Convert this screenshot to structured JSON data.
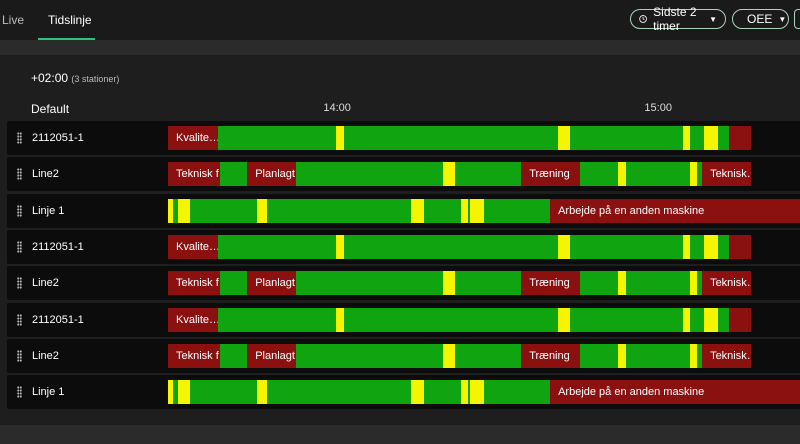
{
  "header": {
    "tabs": [
      "Live",
      "Tidslinje"
    ],
    "time_filter": "Sidste 2 timer",
    "metric": "OEE"
  },
  "timezone": "+02:00",
  "station_count": "(3 stationer)",
  "group": "Default",
  "axis": {
    "range": [
      808.4,
      926.5
    ],
    "ticks": [
      {
        "value": 840,
        "label": "14:00"
      },
      {
        "value": 900,
        "label": "15:00"
      }
    ]
  },
  "rows": [
    {
      "name": "2112051-1",
      "segments": [
        {
          "start": 808.4,
          "end": 817.8,
          "color": "#8b1111",
          "label": "Kvalite…"
        },
        {
          "start": 817.8,
          "end": 839.8,
          "color": "#10a510"
        },
        {
          "start": 839.8,
          "end": 841.3,
          "color": "#f5f500"
        },
        {
          "start": 841.3,
          "end": 881.3,
          "color": "#10a510"
        },
        {
          "start": 881.3,
          "end": 883.6,
          "color": "#f5f500"
        },
        {
          "start": 883.6,
          "end": 904.7,
          "color": "#10a510"
        },
        {
          "start": 904.7,
          "end": 906.0,
          "color": "#f5f500"
        },
        {
          "start": 906.0,
          "end": 908.6,
          "color": "#10a510"
        },
        {
          "start": 908.6,
          "end": 911.2,
          "color": "#f5f500"
        },
        {
          "start": 911.2,
          "end": 913.3,
          "color": "#10a510"
        },
        {
          "start": 913.3,
          "end": 917.4,
          "color": "#8b1111"
        }
      ]
    },
    {
      "name": "Line2",
      "segments": [
        {
          "start": 808.4,
          "end": 818.1,
          "color": "#8b1111",
          "label": "Teknisk f…"
        },
        {
          "start": 818.1,
          "end": 823.2,
          "color": "#10a510"
        },
        {
          "start": 823.2,
          "end": 832.3,
          "color": "#8b1111",
          "label": "Planlagt…"
        },
        {
          "start": 832.3,
          "end": 859.8,
          "color": "#10a510"
        },
        {
          "start": 859.8,
          "end": 862.1,
          "color": "#f5f500"
        },
        {
          "start": 862.1,
          "end": 874.4,
          "color": "#10a510"
        },
        {
          "start": 874.4,
          "end": 885.4,
          "color": "#8b1111",
          "label": "Træning"
        },
        {
          "start": 885.4,
          "end": 892.5,
          "color": "#10a510"
        },
        {
          "start": 892.5,
          "end": 894.0,
          "color": "#f5f500"
        },
        {
          "start": 894.0,
          "end": 906.0,
          "color": "#10a510"
        },
        {
          "start": 906.0,
          "end": 907.3,
          "color": "#f5f500"
        },
        {
          "start": 907.3,
          "end": 908.2,
          "color": "#10a510"
        },
        {
          "start": 908.2,
          "end": 917.4,
          "color": "#8b1111",
          "label": "Teknisk…"
        }
      ]
    },
    {
      "name": "Linje 1",
      "segments": [
        {
          "start": 808.4,
          "end": 809.3,
          "color": "#f5f500"
        },
        {
          "start": 809.3,
          "end": 810.3,
          "color": "#10a510"
        },
        {
          "start": 810.3,
          "end": 812.5,
          "color": "#f5f500"
        },
        {
          "start": 812.5,
          "end": 825.0,
          "color": "#10a510"
        },
        {
          "start": 825.0,
          "end": 826.9,
          "color": "#f5f500"
        },
        {
          "start": 826.9,
          "end": 853.8,
          "color": "#10a510"
        },
        {
          "start": 853.8,
          "end": 856.3,
          "color": "#f5f500"
        },
        {
          "start": 856.3,
          "end": 863.2,
          "color": "#10a510"
        },
        {
          "start": 863.2,
          "end": 864.5,
          "color": "#f5f500"
        },
        {
          "start": 864.5,
          "end": 864.9,
          "color": "#10a510"
        },
        {
          "start": 864.9,
          "end": 867.5,
          "color": "#f5f500"
        },
        {
          "start": 867.5,
          "end": 879.8,
          "color": "#10a510"
        },
        {
          "start": 879.8,
          "end": 926.5,
          "color": "#8b1111",
          "label": "Arbejde på en anden maskine"
        }
      ]
    },
    {
      "name": "2112051-1",
      "segments": [
        {
          "start": 808.4,
          "end": 817.8,
          "color": "#8b1111",
          "label": "Kvalite…"
        },
        {
          "start": 817.8,
          "end": 839.8,
          "color": "#10a510"
        },
        {
          "start": 839.8,
          "end": 841.3,
          "color": "#f5f500"
        },
        {
          "start": 841.3,
          "end": 881.3,
          "color": "#10a510"
        },
        {
          "start": 881.3,
          "end": 883.6,
          "color": "#f5f500"
        },
        {
          "start": 883.6,
          "end": 904.7,
          "color": "#10a510"
        },
        {
          "start": 904.7,
          "end": 906.0,
          "color": "#f5f500"
        },
        {
          "start": 906.0,
          "end": 908.6,
          "color": "#10a510"
        },
        {
          "start": 908.6,
          "end": 911.2,
          "color": "#f5f500"
        },
        {
          "start": 911.2,
          "end": 913.3,
          "color": "#10a510"
        },
        {
          "start": 913.3,
          "end": 917.4,
          "color": "#8b1111"
        }
      ]
    },
    {
      "name": "Line2",
      "segments": [
        {
          "start": 808.4,
          "end": 818.1,
          "color": "#8b1111",
          "label": "Teknisk f…"
        },
        {
          "start": 818.1,
          "end": 823.2,
          "color": "#10a510"
        },
        {
          "start": 823.2,
          "end": 832.3,
          "color": "#8b1111",
          "label": "Planlagt…"
        },
        {
          "start": 832.3,
          "end": 859.8,
          "color": "#10a510"
        },
        {
          "start": 859.8,
          "end": 862.1,
          "color": "#f5f500"
        },
        {
          "start": 862.1,
          "end": 874.4,
          "color": "#10a510"
        },
        {
          "start": 874.4,
          "end": 885.4,
          "color": "#8b1111",
          "label": "Træning"
        },
        {
          "start": 885.4,
          "end": 892.5,
          "color": "#10a510"
        },
        {
          "start": 892.5,
          "end": 894.0,
          "color": "#f5f500"
        },
        {
          "start": 894.0,
          "end": 906.0,
          "color": "#10a510"
        },
        {
          "start": 906.0,
          "end": 907.3,
          "color": "#f5f500"
        },
        {
          "start": 907.3,
          "end": 908.2,
          "color": "#10a510"
        },
        {
          "start": 908.2,
          "end": 917.4,
          "color": "#8b1111",
          "label": "Teknisk…"
        }
      ]
    },
    {
      "name": "2112051-1",
      "segments": [
        {
          "start": 808.4,
          "end": 817.8,
          "color": "#8b1111",
          "label": "Kvalite…"
        },
        {
          "start": 817.8,
          "end": 839.8,
          "color": "#10a510"
        },
        {
          "start": 839.8,
          "end": 841.3,
          "color": "#f5f500"
        },
        {
          "start": 841.3,
          "end": 881.3,
          "color": "#10a510"
        },
        {
          "start": 881.3,
          "end": 883.6,
          "color": "#f5f500"
        },
        {
          "start": 883.6,
          "end": 904.7,
          "color": "#10a510"
        },
        {
          "start": 904.7,
          "end": 906.0,
          "color": "#f5f500"
        },
        {
          "start": 906.0,
          "end": 908.6,
          "color": "#10a510"
        },
        {
          "start": 908.6,
          "end": 911.2,
          "color": "#f5f500"
        },
        {
          "start": 911.2,
          "end": 913.3,
          "color": "#10a510"
        },
        {
          "start": 913.3,
          "end": 917.4,
          "color": "#8b1111"
        }
      ]
    },
    {
      "name": "Line2",
      "segments": [
        {
          "start": 808.4,
          "end": 818.1,
          "color": "#8b1111",
          "label": "Teknisk f…"
        },
        {
          "start": 818.1,
          "end": 823.2,
          "color": "#10a510"
        },
        {
          "start": 823.2,
          "end": 832.3,
          "color": "#8b1111",
          "label": "Planlagt…"
        },
        {
          "start": 832.3,
          "end": 859.8,
          "color": "#10a510"
        },
        {
          "start": 859.8,
          "end": 862.1,
          "color": "#f5f500"
        },
        {
          "start": 862.1,
          "end": 874.4,
          "color": "#10a510"
        },
        {
          "start": 874.4,
          "end": 885.4,
          "color": "#8b1111",
          "label": "Træning"
        },
        {
          "start": 885.4,
          "end": 892.5,
          "color": "#10a510"
        },
        {
          "start": 892.5,
          "end": 894.0,
          "color": "#f5f500"
        },
        {
          "start": 894.0,
          "end": 906.0,
          "color": "#10a510"
        },
        {
          "start": 906.0,
          "end": 907.3,
          "color": "#f5f500"
        },
        {
          "start": 907.3,
          "end": 908.2,
          "color": "#10a510"
        },
        {
          "start": 908.2,
          "end": 917.4,
          "color": "#8b1111",
          "label": "Teknisk…"
        }
      ]
    },
    {
      "name": "Linje 1",
      "segments": [
        {
          "start": 808.4,
          "end": 809.3,
          "color": "#f5f500"
        },
        {
          "start": 809.3,
          "end": 810.3,
          "color": "#10a510"
        },
        {
          "start": 810.3,
          "end": 812.5,
          "color": "#f5f500"
        },
        {
          "start": 812.5,
          "end": 825.0,
          "color": "#10a510"
        },
        {
          "start": 825.0,
          "end": 826.9,
          "color": "#f5f500"
        },
        {
          "start": 826.9,
          "end": 853.8,
          "color": "#10a510"
        },
        {
          "start": 853.8,
          "end": 856.3,
          "color": "#f5f500"
        },
        {
          "start": 856.3,
          "end": 863.2,
          "color": "#10a510"
        },
        {
          "start": 863.2,
          "end": 864.5,
          "color": "#f5f500"
        },
        {
          "start": 864.5,
          "end": 864.9,
          "color": "#10a510"
        },
        {
          "start": 864.9,
          "end": 867.5,
          "color": "#f5f500"
        },
        {
          "start": 867.5,
          "end": 879.8,
          "color": "#10a510"
        },
        {
          "start": 879.8,
          "end": 926.5,
          "color": "#8b1111",
          "label": "Arbejde på en anden maskine"
        }
      ]
    }
  ]
}
